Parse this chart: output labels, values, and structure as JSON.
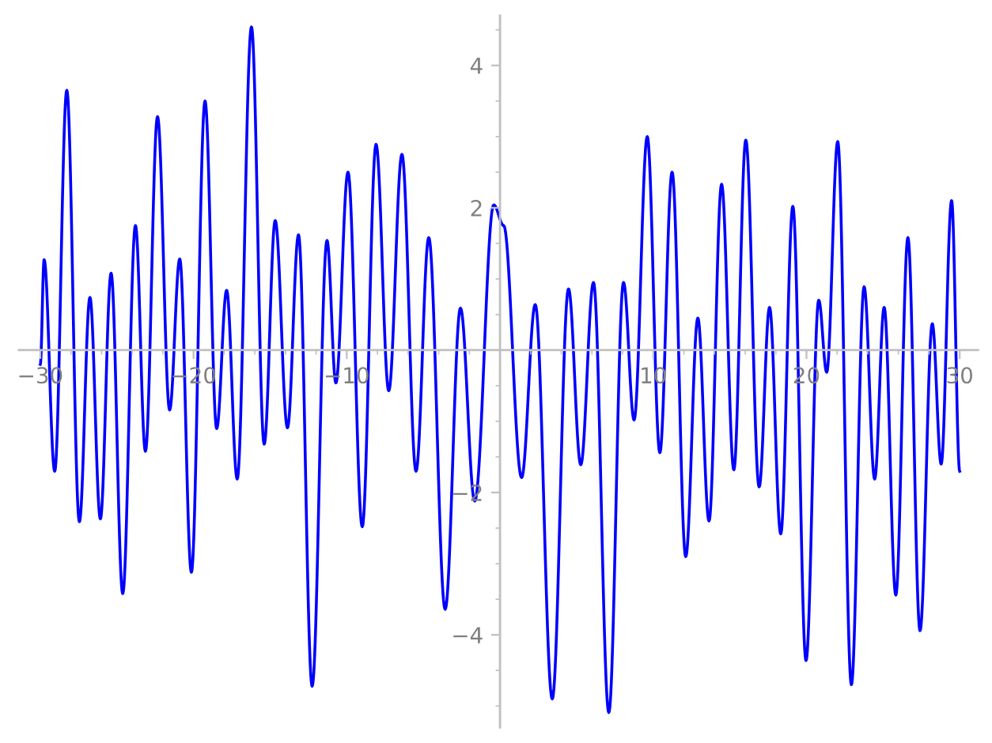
{
  "chart_data": {
    "type": "line",
    "x": [
      -30.0,
      -29.75,
      -29.06,
      -28.27,
      -27.45,
      -26.76,
      -26.08,
      -25.38,
      -24.62,
      -23.79,
      -23.14,
      -22.35,
      -21.56,
      -20.9,
      -20.14,
      -19.25,
      -18.49,
      -17.84,
      -17.15,
      -16.22,
      -15.39,
      -14.67,
      -13.87,
      -13.15,
      -12.26,
      -11.29,
      -10.71,
      -9.92,
      -8.99,
      -8.09,
      -7.26,
      -6.4,
      -5.48,
      -4.65,
      -3.58,
      -2.58,
      -1.65,
      -0.41,
      0.24,
      1.41,
      2.3,
      3.41,
      4.47,
      5.27,
      6.1,
      7.1,
      8.06,
      8.75,
      9.61,
      10.43,
      11.23,
      12.12,
      12.91,
      13.64,
      14.46,
      15.26,
      16.04,
      16.91,
      17.59,
      18.32,
      19.11,
      19.97,
      20.8,
      21.32,
      22.04,
      22.93,
      23.76,
      24.45,
      25.07,
      25.83,
      26.62,
      27.41,
      28.21,
      28.79,
      29.47,
      30.0
    ],
    "series": [
      {
        "color": "#0000ff",
        "values": [
          -0.2,
          1.27,
          -1.7,
          3.65,
          -2.41,
          0.74,
          -2.37,
          1.08,
          -3.42,
          1.75,
          -1.42,
          3.28,
          -0.84,
          1.28,
          -3.12,
          3.5,
          -1.1,
          0.84,
          -1.81,
          4.54,
          -1.32,
          1.82,
          -1.09,
          1.62,
          -4.72,
          1.54,
          -0.46,
          2.5,
          -2.48,
          2.89,
          -0.57,
          2.75,
          -1.7,
          1.58,
          -3.64,
          0.59,
          -2.12,
          2.04,
          1.75,
          -1.79,
          0.64,
          -4.9,
          0.86,
          -1.61,
          0.95,
          -5.09,
          0.95,
          -0.98,
          3.0,
          -1.44,
          2.5,
          -2.9,
          0.45,
          -2.4,
          2.33,
          -1.68,
          2.95,
          -1.92,
          0.6,
          -2.58,
          2.02,
          -4.36,
          0.7,
          -0.31,
          2.93,
          -4.7,
          0.89,
          -1.81,
          0.6,
          -3.44,
          1.58,
          -3.94,
          0.37,
          -1.6,
          2.1,
          -1.7
        ]
      }
    ],
    "xlim": [
      -31.4,
      31.2
    ],
    "ylim": [
      -5.3,
      4.7
    ],
    "xticks": [
      {
        "value": -30,
        "label": "−30"
      },
      {
        "value": -28,
        "label": null
      },
      {
        "value": -26,
        "label": null
      },
      {
        "value": -24,
        "label": null
      },
      {
        "value": -22,
        "label": null
      },
      {
        "value": -20,
        "label": "−20"
      },
      {
        "value": -18,
        "label": null
      },
      {
        "value": -16,
        "label": null
      },
      {
        "value": -14,
        "label": null
      },
      {
        "value": -12,
        "label": null
      },
      {
        "value": -10,
        "label": "−10"
      },
      {
        "value": -8,
        "label": null
      },
      {
        "value": -6,
        "label": null
      },
      {
        "value": -4,
        "label": null
      },
      {
        "value": -2,
        "label": null
      },
      {
        "value": 2,
        "label": null
      },
      {
        "value": 4,
        "label": null
      },
      {
        "value": 6,
        "label": null
      },
      {
        "value": 8,
        "label": null
      },
      10,
      {
        "value": 12,
        "label": null
      },
      {
        "value": 14,
        "label": null
      },
      {
        "value": 16,
        "label": null
      },
      {
        "value": 18,
        "label": null
      },
      20,
      {
        "value": 22,
        "label": null
      },
      {
        "value": 24,
        "label": null
      },
      {
        "value": 26,
        "label": null
      },
      {
        "value": 28,
        "label": null
      },
      30
    ],
    "yticks": [
      {
        "value": -5,
        "label": null
      },
      {
        "value": -4.5,
        "label": null
      },
      {
        "value": -4,
        "label": "−4"
      },
      {
        "value": -3.5,
        "label": null
      },
      {
        "value": -3,
        "label": null
      },
      {
        "value": -2.5,
        "label": null
      },
      {
        "value": -2,
        "label": "−2"
      },
      {
        "value": -1.5,
        "label": null
      },
      {
        "value": -1,
        "label": null
      },
      {
        "value": -0.5,
        "label": null
      },
      {
        "value": 0.5,
        "label": null
      },
      {
        "value": 1,
        "label": null
      },
      {
        "value": 1.5,
        "label": null
      },
      2,
      {
        "value": 2.5,
        "label": null
      },
      {
        "value": 3,
        "label": null
      },
      {
        "value": 3.5,
        "label": null
      },
      4,
      {
        "value": 4.5,
        "label": null
      }
    ],
    "grid": false,
    "legend": false,
    "marker": "none",
    "line_style": "solid"
  }
}
